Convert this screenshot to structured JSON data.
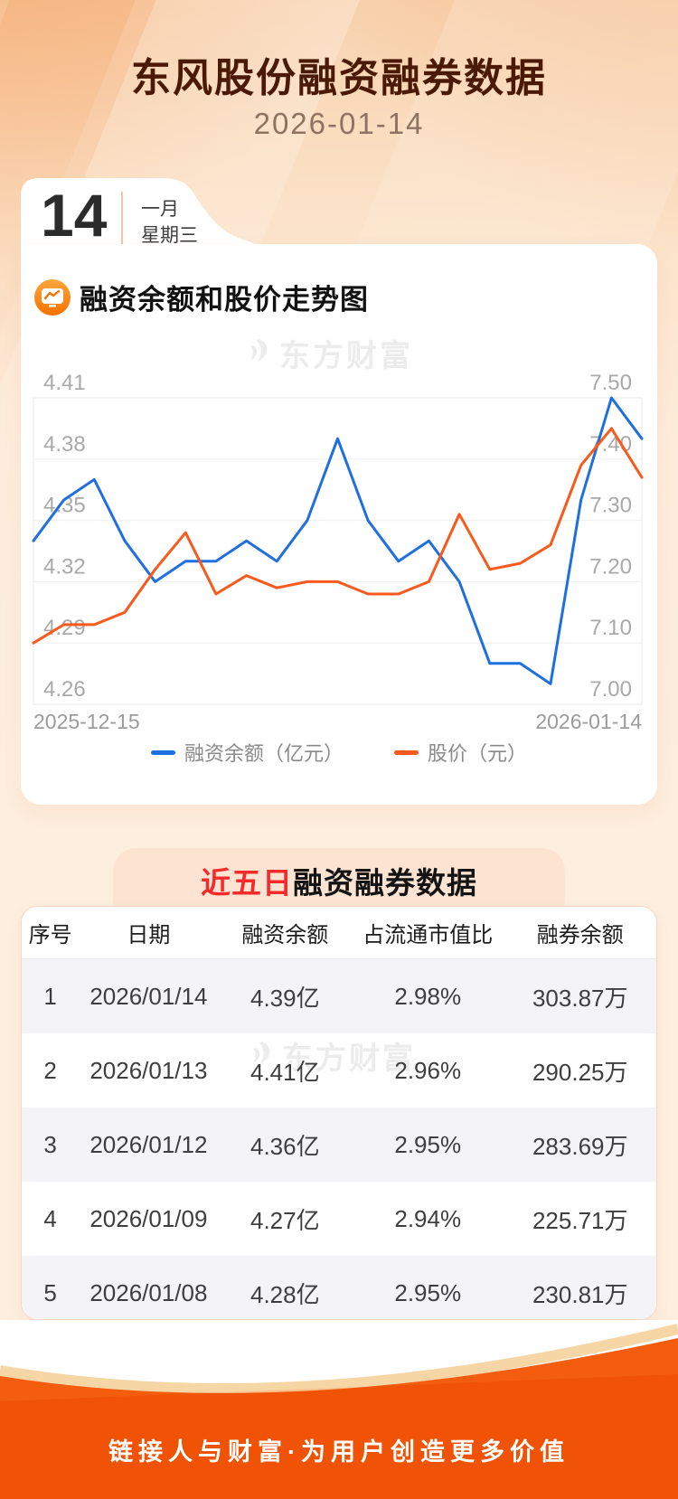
{
  "header": {
    "title": "东风股份融资融券数据",
    "date": "2026-01-14"
  },
  "calendar": {
    "day": "14",
    "month": "一月",
    "weekday": "星期三"
  },
  "watermark": {
    "text": "东方财富"
  },
  "chart_section": {
    "title": "融资余额和股价走势图"
  },
  "chart_data": {
    "type": "line",
    "title": "融资余额和股价走势图",
    "x_start_label": "2025-12-15",
    "x_end_label": "2026-01-14",
    "grid": true,
    "legend_position": "bottom",
    "left_axis": {
      "ticks": [
        "4.41",
        "4.38",
        "4.35",
        "4.32",
        "4.29",
        "4.26"
      ],
      "min": 4.26,
      "max": 4.41
    },
    "right_axis": {
      "ticks": [
        "7.50",
        "7.40",
        "7.30",
        "7.20",
        "7.10",
        "7.00"
      ],
      "min": 7.0,
      "max": 7.5
    },
    "series": [
      {
        "name": "融资余额（亿元）",
        "axis": "left",
        "color": "#1e6fe0",
        "values": [
          4.34,
          4.36,
          4.37,
          4.34,
          4.32,
          4.33,
          4.33,
          4.34,
          4.33,
          4.35,
          4.39,
          4.35,
          4.33,
          4.34,
          4.32,
          4.28,
          4.28,
          4.27,
          4.36,
          4.41,
          4.39
        ]
      },
      {
        "name": "股价（元）",
        "axis": "right",
        "color": "#f9591a",
        "values": [
          7.1,
          7.13,
          7.13,
          7.15,
          7.22,
          7.28,
          7.18,
          7.21,
          7.19,
          7.2,
          7.2,
          7.18,
          7.18,
          7.2,
          7.31,
          7.22,
          7.23,
          7.26,
          7.39,
          7.45,
          7.37
        ]
      }
    ]
  },
  "table_section": {
    "title_highlight": "近五日",
    "title_rest": "融资融券数据",
    "headers": [
      "序号",
      "日期",
      "融资余额",
      "占流通市值比",
      "融券余额"
    ],
    "rows": [
      [
        "1",
        "2026/01/14",
        "4.39亿",
        "2.98%",
        "303.87万"
      ],
      [
        "2",
        "2026/01/13",
        "4.41亿",
        "2.96%",
        "290.25万"
      ],
      [
        "3",
        "2026/01/12",
        "4.36亿",
        "2.95%",
        "283.69万"
      ],
      [
        "4",
        "2026/01/09",
        "4.27亿",
        "2.94%",
        "225.71万"
      ],
      [
        "5",
        "2026/01/08",
        "4.28亿",
        "2.95%",
        "230.81万"
      ]
    ]
  },
  "footer": {
    "text": "链接人与财富·为用户创造更多价值"
  },
  "colors": {
    "line_blue": "#1e6fe0",
    "line_orange": "#f9591a",
    "footer_orange": "#f05306",
    "highlight_red": "#f52b2b",
    "title_brown": "#4a1a06",
    "tab_pink": "#fce3d2"
  }
}
